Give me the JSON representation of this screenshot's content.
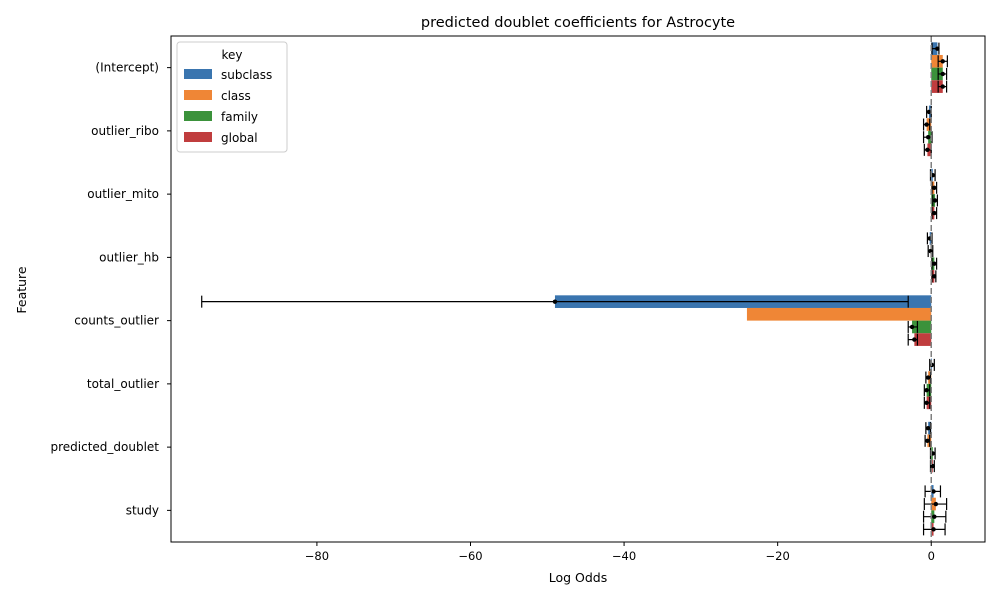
{
  "chart_data": {
    "type": "bar",
    "orientation": "horizontal",
    "title": "predicted doublet coefficients for Astrocyte",
    "xlabel": "Log Odds",
    "ylabel": "Feature",
    "xlim": [
      -99,
      7
    ],
    "xticks": [
      -80,
      -60,
      -40,
      -20,
      0
    ],
    "xtick_labels": [
      "−80",
      "−60",
      "−40",
      "−20",
      "0"
    ],
    "reference_line": 0,
    "legend": {
      "title": "key",
      "position": "top-left"
    },
    "categories": [
      "(Intercept)",
      "outlier_ribo",
      "outlier_mito",
      "outlier_hb",
      "counts_outlier",
      "total_outlier",
      "predicted_doublet",
      "study"
    ],
    "series": [
      {
        "name": "subclass",
        "color": "#3a75af",
        "values": [
          0.8,
          -0.3,
          0.2,
          -0.2,
          -49,
          0.1,
          -0.4,
          0.3
        ],
        "ci": [
          [
            0.1,
            1.0
          ],
          [
            -0.6,
            0.0
          ],
          [
            -0.1,
            0.5
          ],
          [
            -0.5,
            0.1
          ],
          [
            -95,
            -3
          ],
          [
            -0.2,
            0.4
          ],
          [
            -0.7,
            -0.1
          ],
          [
            -0.8,
            1.2
          ]
        ]
      },
      {
        "name": "class",
        "color": "#ef8636",
        "values": [
          1.5,
          -0.6,
          0.4,
          -0.1,
          -24,
          -0.4,
          -0.5,
          0.6
        ],
        "ci": [
          [
            0.9,
            2.1
          ],
          [
            -1.0,
            -0.2
          ],
          [
            0.1,
            0.7
          ],
          [
            -0.4,
            0.2
          ],
          [
            -24,
            -24
          ],
          [
            -0.7,
            -0.1
          ],
          [
            -0.8,
            -0.2
          ],
          [
            -0.9,
            2.0
          ]
        ]
      },
      {
        "name": "family",
        "color": "#3b923b",
        "values": [
          1.5,
          -0.4,
          0.5,
          0.4,
          -2.5,
          -0.6,
          0.2,
          0.4
        ],
        "ci": [
          [
            0.9,
            2.0
          ],
          [
            -1.0,
            0.1
          ],
          [
            0.2,
            0.8
          ],
          [
            0.1,
            0.7
          ],
          [
            -3,
            -1.8
          ],
          [
            -0.9,
            -0.2
          ],
          [
            -0.1,
            0.5
          ],
          [
            -1.0,
            1.9
          ]
        ]
      },
      {
        "name": "global",
        "color": "#c03d3e",
        "values": [
          1.5,
          -0.5,
          0.4,
          0.4,
          -2.2,
          -0.6,
          0.2,
          0.3
        ],
        "ci": [
          [
            0.9,
            2.0
          ],
          [
            -0.9,
            0.0
          ],
          [
            0.1,
            0.7
          ],
          [
            0.1,
            0.6
          ],
          [
            -3,
            -1.8
          ],
          [
            -0.9,
            -0.2
          ],
          [
            -0.1,
            0.4
          ],
          [
            -1.0,
            1.8
          ]
        ]
      }
    ]
  }
}
